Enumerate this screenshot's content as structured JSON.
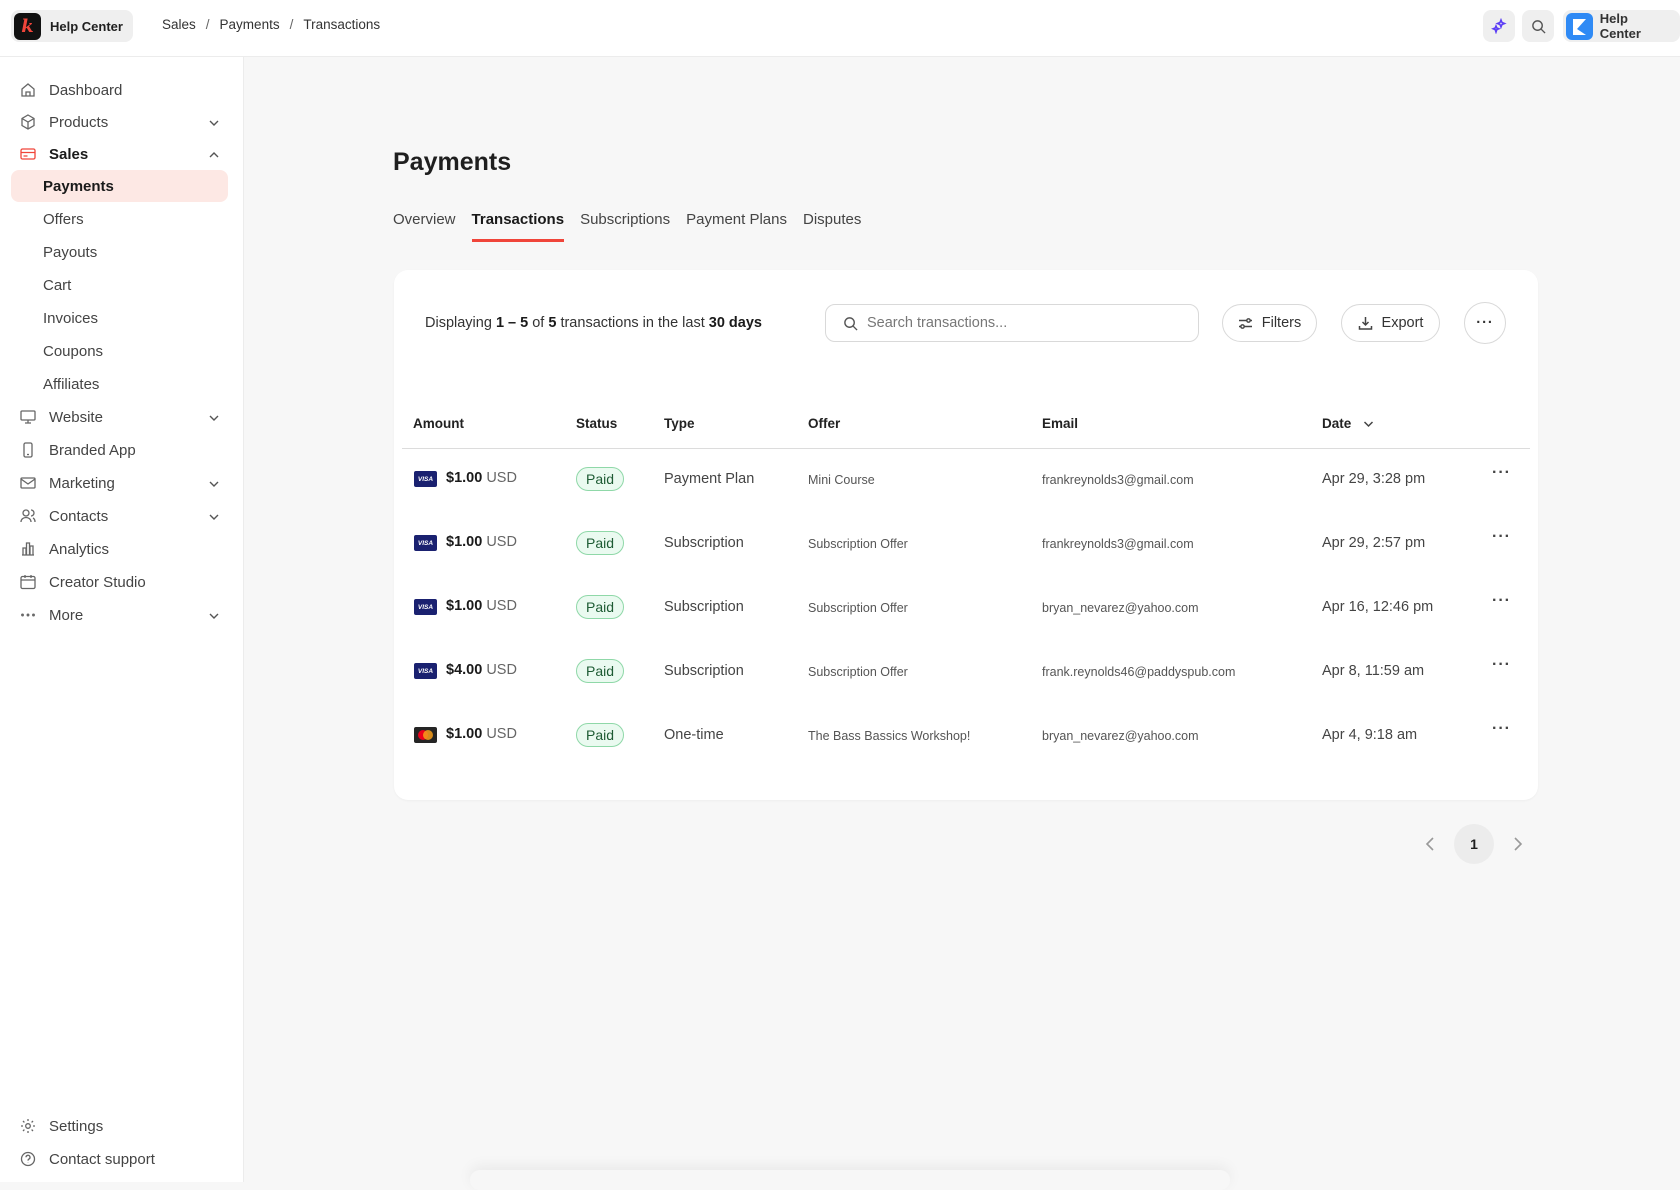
{
  "topbar": {
    "brand": "Help Center",
    "breadcrumb": [
      "Sales",
      "Payments",
      "Transactions"
    ],
    "help_center_label": "Help Center",
    "accent": "#f0453a"
  },
  "sidebar": {
    "items": [
      {
        "label": "Dashboard",
        "icon": "home-icon"
      },
      {
        "label": "Products",
        "icon": "box-icon",
        "chevron": "down"
      },
      {
        "label": "Sales",
        "icon": "credit-card-icon",
        "chevron": "up"
      },
      {
        "label": "Payments",
        "sub": true,
        "active": true
      },
      {
        "label": "Offers",
        "sub": true
      },
      {
        "label": "Payouts",
        "sub": true
      },
      {
        "label": "Cart",
        "sub": true
      },
      {
        "label": "Invoices",
        "sub": true
      },
      {
        "label": "Coupons",
        "sub": true
      },
      {
        "label": "Affiliates",
        "sub": true
      },
      {
        "label": "Website",
        "icon": "monitor-icon",
        "chevron": "down"
      },
      {
        "label": "Branded App",
        "icon": "phone-icon"
      },
      {
        "label": "Marketing",
        "icon": "mail-icon",
        "chevron": "down"
      },
      {
        "label": "Contacts",
        "icon": "users-icon",
        "chevron": "down"
      },
      {
        "label": "Analytics",
        "icon": "bar-chart-icon"
      },
      {
        "label": "Creator Studio",
        "icon": "calendar-icon"
      },
      {
        "label": "More",
        "icon": "more-icon",
        "chevron": "down"
      }
    ],
    "bottom": [
      {
        "label": "Settings",
        "icon": "gear-icon"
      },
      {
        "label": "Contact support",
        "icon": "help-circle-icon"
      }
    ]
  },
  "main": {
    "title": "Payments",
    "tabs": [
      {
        "label": "Overview"
      },
      {
        "label": "Transactions",
        "active": true
      },
      {
        "label": "Subscriptions"
      },
      {
        "label": "Payment Plans"
      },
      {
        "label": "Disputes"
      }
    ],
    "summary": {
      "prefix": "Displaying",
      "range": "1 – 5",
      "of": "of",
      "total": "5",
      "mid": "transactions in the last",
      "period": "30 days"
    },
    "search_placeholder": "Search transactions...",
    "filters_label": "Filters",
    "export_label": "Export",
    "columns": [
      "Amount",
      "Status",
      "Type",
      "Offer",
      "Email",
      "Date"
    ],
    "rows": [
      {
        "card": "visa",
        "amount": "$1.00",
        "currency": "USD",
        "status": "Paid",
        "type": "Payment Plan",
        "offer": "Mini Course",
        "email": "frankreynolds3@gmail.com",
        "date": "Apr 29, 3:28 pm"
      },
      {
        "card": "visa",
        "amount": "$1.00",
        "currency": "USD",
        "status": "Paid",
        "type": "Subscription",
        "offer": "Subscription Offer",
        "email": "frankreynolds3@gmail.com",
        "date": "Apr 29, 2:57 pm"
      },
      {
        "card": "visa",
        "amount": "$1.00",
        "currency": "USD",
        "status": "Paid",
        "type": "Subscription",
        "offer": "Subscription Offer",
        "email": "bryan_nevarez@yahoo.com",
        "date": "Apr 16, 12:46 pm"
      },
      {
        "card": "visa",
        "amount": "$4.00",
        "currency": "USD",
        "status": "Paid",
        "type": "Subscription",
        "offer": "Subscription Offer",
        "email": "frank.reynolds46@paddyspub.com",
        "date": "Apr 8, 11:59 am"
      },
      {
        "card": "mastercard",
        "amount": "$1.00",
        "currency": "USD",
        "status": "Paid",
        "type": "One-time",
        "offer": "The Bass Bassics Workshop!",
        "email": "bryan_nevarez@yahoo.com",
        "date": "Apr 4, 9:18 am"
      }
    ],
    "visa_text": "VISA",
    "pagination": {
      "current": "1"
    }
  }
}
